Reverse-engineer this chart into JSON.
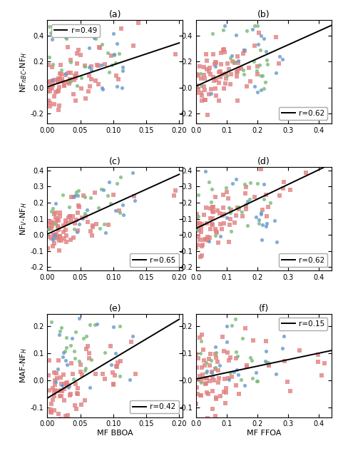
{
  "panels": [
    {
      "label": "(a)",
      "r": 0.49,
      "legend_loc": "upper left",
      "xlabel": "",
      "ylabel": "NF$_{nBC}$-NF$_H$",
      "xlim": [
        0.0,
        0.205
      ],
      "ylim": [
        -0.28,
        0.52
      ],
      "xticks": [
        0.0,
        0.05,
        0.1,
        0.15,
        0.2
      ],
      "yticks": [
        -0.2,
        0.0,
        0.2,
        0.4
      ],
      "xticklabels": [
        "0.00",
        "0.05",
        "0.10",
        "0.15",
        "0.20"
      ],
      "yticklabels": [
        "-0.2",
        "0.0",
        "0.2",
        "0.4"
      ],
      "line_x": [
        0.0,
        0.2
      ],
      "line_y": [
        0.005,
        0.345
      ]
    },
    {
      "label": "(b)",
      "r": 0.62,
      "legend_loc": "lower right",
      "xlabel": "",
      "ylabel": "",
      "xlim": [
        0.0,
        0.44
      ],
      "ylim": [
        -0.28,
        0.52
      ],
      "xticks": [
        0.0,
        0.1,
        0.2,
        0.3,
        0.4
      ],
      "yticks": [
        -0.2,
        0.0,
        0.2,
        0.4
      ],
      "xticklabels": [
        "0.0",
        "0.1",
        "0.2",
        "0.3",
        "0.4"
      ],
      "yticklabels": [
        "-0.2",
        "0.0",
        "0.2",
        "0.4"
      ],
      "line_x": [
        0.0,
        0.44
      ],
      "line_y": [
        0.01,
        0.48
      ]
    },
    {
      "label": "(c)",
      "r": 0.65,
      "legend_loc": "lower right",
      "xlabel": "",
      "ylabel": "NF$_V$-NF$_H$",
      "xlim": [
        0.0,
        0.205
      ],
      "ylim": [
        -0.22,
        0.42
      ],
      "xticks": [
        0.0,
        0.05,
        0.1,
        0.15,
        0.2
      ],
      "yticks": [
        -0.2,
        -0.1,
        0.0,
        0.1,
        0.2,
        0.3,
        0.4
      ],
      "xticklabels": [
        "0.00",
        "0.05",
        "0.10",
        "0.15",
        "0.20"
      ],
      "yticklabels": [
        "-0.2",
        "-0.1",
        "0.0",
        "0.1",
        "0.2",
        "0.3",
        "0.4"
      ],
      "line_x": [
        0.0,
        0.2
      ],
      "line_y": [
        0.005,
        0.375
      ]
    },
    {
      "label": "(d)",
      "r": 0.62,
      "legend_loc": "lower right",
      "xlabel": "",
      "ylabel": "",
      "xlim": [
        0.0,
        0.44
      ],
      "ylim": [
        -0.22,
        0.42
      ],
      "xticks": [
        0.0,
        0.1,
        0.2,
        0.3,
        0.4
      ],
      "yticks": [
        -0.2,
        -0.1,
        0.0,
        0.1,
        0.2,
        0.3,
        0.4
      ],
      "xticklabels": [
        "0.0",
        "0.1",
        "0.2",
        "0.3",
        "0.4"
      ],
      "yticklabels": [
        "-0.2",
        "-0.1",
        "0.0",
        "0.1",
        "0.2",
        "0.3",
        "0.4"
      ],
      "line_x": [
        0.0,
        0.44
      ],
      "line_y": [
        0.04,
        0.44
      ]
    },
    {
      "label": "(e)",
      "r": 0.42,
      "legend_loc": "lower right",
      "xlabel": "MF BBOA",
      "ylabel": "MAF-NF$_H$",
      "xlim": [
        0.0,
        0.205
      ],
      "ylim": [
        -0.135,
        0.245
      ],
      "xticks": [
        0.0,
        0.05,
        0.1,
        0.15,
        0.2
      ],
      "yticks": [
        -0.1,
        0.0,
        0.1,
        0.2
      ],
      "xticklabels": [
        "0.00",
        "0.05",
        "0.10",
        "0.15",
        "0.20"
      ],
      "yticklabels": [
        "-0.1",
        "0.0",
        "0.1",
        "0.2"
      ],
      "line_x": [
        0.0,
        0.2
      ],
      "line_y": [
        -0.065,
        0.225
      ]
    },
    {
      "label": "(f)",
      "r": 0.15,
      "legend_loc": "upper right",
      "xlabel": "MF FFOA",
      "ylabel": "",
      "xlim": [
        0.0,
        0.44
      ],
      "ylim": [
        -0.135,
        0.245
      ],
      "xticks": [
        0.0,
        0.1,
        0.2,
        0.3,
        0.4
      ],
      "yticks": [
        -0.1,
        0.0,
        0.1,
        0.2
      ],
      "xticklabels": [
        "0.0",
        "0.1",
        "0.2",
        "0.3",
        "0.4"
      ],
      "yticklabels": [
        "-0.1",
        "0.0",
        "0.1",
        "0.2"
      ],
      "line_x": [
        0.0,
        0.44
      ],
      "line_y": [
        0.005,
        0.11
      ]
    }
  ],
  "colors": {
    "red": "#E08080",
    "blue": "#6699CC",
    "green": "#77BB77"
  },
  "marker_size": 14,
  "alpha": 0.8
}
